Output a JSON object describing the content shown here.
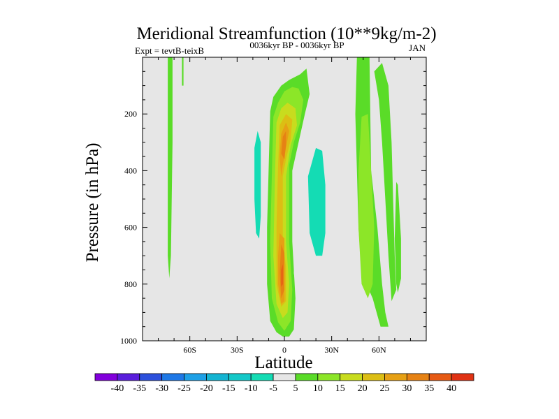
{
  "chart_data": {
    "type": "filled-contour",
    "title": "Meridional Streamfunction (10**9kg/m-2)",
    "subtitle_left": "Expt = tevtB-teixB",
    "subtitle_center": "0036kyr BP - 0036kyr BP",
    "subtitle_right": "JAN",
    "xlabel": "Latitude",
    "ylabel": "Pressure (in hPa)",
    "xlim": [
      -90,
      90
    ],
    "ylim": [
      0,
      1000
    ],
    "y_inverted": true,
    "x_ticks": [
      {
        "value": -60,
        "label": "60S"
      },
      {
        "value": -30,
        "label": "30S"
      },
      {
        "value": 0,
        "label": "0"
      },
      {
        "value": 30,
        "label": "30N"
      },
      {
        "value": 60,
        "label": "60N"
      }
    ],
    "y_ticks": [
      200,
      400,
      600,
      800,
      1000
    ],
    "background_color": "#e6e6e6",
    "colorbar": {
      "labels": [
        "-40",
        "-35",
        "-30",
        "-25",
        "-20",
        "-15",
        "-10",
        "-5",
        "5",
        "10",
        "15",
        "20",
        "25",
        "30",
        "35",
        "40"
      ],
      "colors": [
        "#8200dc",
        "#5a1edc",
        "#2c50dc",
        "#1e78e6",
        "#1ea0e6",
        "#14b4d2",
        "#14c8c8",
        "#14dcb4",
        "#e6e6e6",
        "#5adc28",
        "#8ce628",
        "#c8dc1e",
        "#dcbe14",
        "#e6a014",
        "#e68214",
        "#e65a14",
        "#e03214"
      ]
    },
    "regions": [
      {
        "name": "green-strip-70s",
        "value": 5,
        "points": [
          [
            -74,
            0
          ],
          [
            -71,
            0
          ],
          [
            -71,
            300
          ],
          [
            -72,
            700
          ],
          [
            -73,
            780
          ],
          [
            -74,
            700
          ],
          [
            -74,
            300
          ]
        ]
      },
      {
        "name": "cyan-strip-64s",
        "value": -5,
        "points": [
          [
            -66,
            0
          ],
          [
            -64,
            0
          ],
          [
            -63,
            300
          ],
          [
            -62,
            700
          ],
          [
            -62,
            880
          ],
          [
            -63,
            930
          ],
          [
            -64,
            820
          ],
          [
            -65,
            700
          ],
          [
            -66,
            300
          ]
        ]
      },
      {
        "name": "green-strip-65s",
        "value": 5,
        "points": [
          [
            -65,
            0
          ],
          [
            -64,
            0
          ],
          [
            -64,
            100
          ],
          [
            -65,
            100
          ]
        ]
      },
      {
        "name": "cyan-cell-south",
        "value": -5,
        "points": [
          [
            -21,
            270
          ],
          [
            -20,
            210
          ],
          [
            -16,
            160
          ],
          [
            -14,
            180
          ],
          [
            -12,
            260
          ],
          [
            -12,
            500
          ],
          [
            -13,
            760
          ],
          [
            -14,
            880
          ],
          [
            -17,
            900
          ],
          [
            -19,
            820
          ],
          [
            -21,
            600
          ]
        ]
      },
      {
        "name": "cyan-cell-south-core",
        "value": -10,
        "points": [
          [
            -19,
            320
          ],
          [
            -17,
            260
          ],
          [
            -15,
            300
          ],
          [
            -15,
            560
          ],
          [
            -16,
            640
          ],
          [
            -18,
            620
          ],
          [
            -19,
            500
          ]
        ]
      },
      {
        "name": "green-outer-equator",
        "value": 5,
        "points": [
          [
            -9,
            190
          ],
          [
            -7,
            140
          ],
          [
            -2,
            100
          ],
          [
            3,
            80
          ],
          [
            10,
            60
          ],
          [
            14,
            40
          ],
          [
            16,
            130
          ],
          [
            13,
            200
          ],
          [
            9,
            300
          ],
          [
            5,
            400
          ],
          [
            5,
            650
          ],
          [
            7,
            850
          ],
          [
            6,
            960
          ],
          [
            3,
            985
          ],
          [
            -1,
            985
          ],
          [
            -5,
            970
          ],
          [
            -9,
            930
          ],
          [
            -11,
            800
          ],
          [
            -11,
            600
          ],
          [
            -10,
            400
          ]
        ]
      },
      {
        "name": "yellow-green-equator",
        "value": 10,
        "points": [
          [
            -7,
            210
          ],
          [
            -4,
            160
          ],
          [
            0,
            120
          ],
          [
            5,
            105
          ],
          [
            9,
            110
          ],
          [
            12,
            150
          ],
          [
            10,
            230
          ],
          [
            6,
            300
          ],
          [
            3,
            380
          ],
          [
            3,
            650
          ],
          [
            5,
            820
          ],
          [
            4,
            930
          ],
          [
            0,
            965
          ],
          [
            -4,
            935
          ],
          [
            -8,
            850
          ],
          [
            -9,
            650
          ],
          [
            -8,
            420
          ]
        ]
      },
      {
        "name": "yellow-equator",
        "value": 15,
        "points": [
          [
            -5,
            230
          ],
          [
            -2,
            180
          ],
          [
            2,
            160
          ],
          [
            7,
            180
          ],
          [
            8,
            240
          ],
          [
            4,
            310
          ],
          [
            1,
            420
          ],
          [
            1,
            650
          ],
          [
            3,
            800
          ],
          [
            2,
            900
          ],
          [
            -1,
            920
          ],
          [
            -5,
            870
          ],
          [
            -7,
            700
          ],
          [
            -6,
            420
          ]
        ]
      },
      {
        "name": "gold-equator",
        "value": 20,
        "points": [
          [
            -3,
            240
          ],
          [
            1,
            200
          ],
          [
            5,
            220
          ],
          [
            4,
            290
          ],
          [
            1,
            360
          ],
          [
            -1,
            420
          ],
          [
            -1,
            640
          ],
          [
            1,
            740
          ],
          [
            1,
            860
          ],
          [
            -2,
            880
          ],
          [
            -5,
            800
          ],
          [
            -5,
            600
          ],
          [
            -4,
            380
          ]
        ]
      },
      {
        "name": "orange-upper-core",
        "value": 25,
        "points": [
          [
            -2,
            270
          ],
          [
            1,
            230
          ],
          [
            3,
            260
          ],
          [
            1,
            320
          ],
          [
            -1,
            380
          ],
          [
            -2,
            420
          ],
          [
            -3,
            350
          ]
        ]
      },
      {
        "name": "dark-orange-upper-core",
        "value": 30,
        "points": [
          [
            -1,
            280
          ],
          [
            1,
            260
          ],
          [
            1,
            310
          ],
          [
            0,
            360
          ],
          [
            -2,
            340
          ]
        ]
      },
      {
        "name": "orange-lower-core",
        "value": 25,
        "points": [
          [
            -3,
            620
          ],
          [
            0,
            640
          ],
          [
            0,
            740
          ],
          [
            0,
            860
          ],
          [
            -2,
            870
          ],
          [
            -4,
            800
          ],
          [
            -4,
            700
          ]
        ]
      },
      {
        "name": "dark-orange-lower-core",
        "value": 30,
        "points": [
          [
            -2,
            660
          ],
          [
            0,
            690
          ],
          [
            0,
            820
          ],
          [
            -2,
            850
          ],
          [
            -3,
            760
          ]
        ]
      },
      {
        "name": "red-lower-core",
        "value": 35,
        "points": [
          [
            -2,
            750
          ],
          [
            -1,
            730
          ],
          [
            -1,
            800
          ],
          [
            -2,
            810
          ]
        ]
      },
      {
        "name": "cyan-cell-north",
        "value": -5,
        "points": [
          [
            6,
            760
          ],
          [
            10,
            400
          ],
          [
            14,
            330
          ],
          [
            19,
            260
          ],
          [
            24,
            240
          ],
          [
            27,
            330
          ],
          [
            29,
            500
          ],
          [
            29,
            700
          ],
          [
            30,
            860
          ],
          [
            29,
            940
          ],
          [
            27,
            960
          ],
          [
            24,
            900
          ],
          [
            20,
            920
          ],
          [
            14,
            860
          ],
          [
            8,
            840
          ]
        ]
      },
      {
        "name": "cyan-cell-north-core",
        "value": -10,
        "points": [
          [
            15,
            420
          ],
          [
            20,
            320
          ],
          [
            24,
            330
          ],
          [
            26,
            450
          ],
          [
            26,
            620
          ],
          [
            24,
            700
          ],
          [
            20,
            700
          ],
          [
            16,
            620
          ]
        ]
      },
      {
        "name": "cyan-north-sliver",
        "value": -5,
        "points": [
          [
            35,
            20
          ],
          [
            37,
            20
          ],
          [
            37,
            220
          ],
          [
            36,
            240
          ],
          [
            35,
            200
          ]
        ]
      },
      {
        "name": "green-north-tall",
        "value": 5,
        "points": [
          [
            46,
            0
          ],
          [
            54,
            0
          ],
          [
            55,
            400
          ],
          [
            59,
            600
          ],
          [
            62,
            800
          ],
          [
            64,
            900
          ],
          [
            66,
            950
          ],
          [
            61,
            950
          ],
          [
            56,
            850
          ],
          [
            52,
            800
          ],
          [
            49,
            750
          ],
          [
            47,
            600
          ],
          [
            46,
            400
          ],
          [
            45,
            200
          ]
        ]
      },
      {
        "name": "yellow-green-north",
        "value": 10,
        "points": [
          [
            49,
            210
          ],
          [
            53,
            200
          ],
          [
            55,
            400
          ],
          [
            57,
            600
          ],
          [
            56,
            800
          ],
          [
            53,
            850
          ],
          [
            49,
            800
          ],
          [
            47,
            600
          ],
          [
            47,
            400
          ]
        ]
      },
      {
        "name": "green-60n-arc",
        "value": 5,
        "points": [
          [
            57,
            50
          ],
          [
            62,
            20
          ],
          [
            66,
            100
          ],
          [
            68,
            300
          ],
          [
            69,
            500
          ],
          [
            70,
            700
          ],
          [
            71,
            820
          ],
          [
            68,
            860
          ],
          [
            66,
            700
          ],
          [
            64,
            500
          ],
          [
            62,
            300
          ],
          [
            60,
            150
          ]
        ]
      },
      {
        "name": "green-far-north",
        "value": 5,
        "points": [
          [
            71,
            440
          ],
          [
            72,
            450
          ],
          [
            74,
            640
          ],
          [
            74,
            780
          ],
          [
            72,
            830
          ],
          [
            71,
            800
          ],
          [
            70,
            640
          ]
        ]
      }
    ]
  }
}
